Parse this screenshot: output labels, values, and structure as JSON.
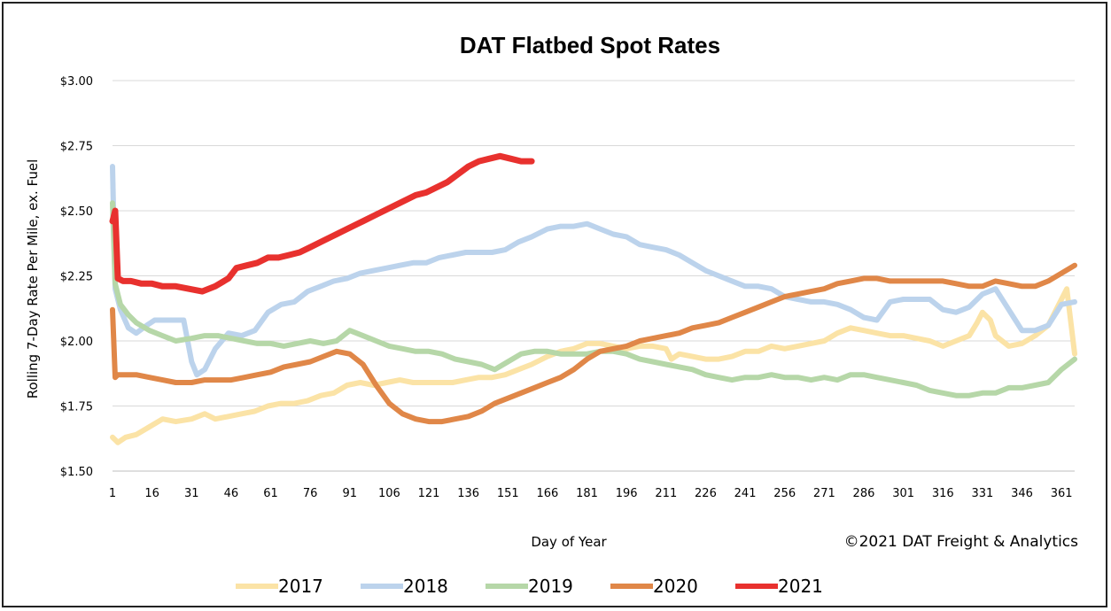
{
  "chart_data": {
    "type": "line",
    "title": "DAT Flatbed Spot Rates",
    "xlabel": "Day of Year",
    "ylabel": "Rolling 7-Day Rate Per Mile, ex. Fuel",
    "credit": "©2021 DAT Freight & Analytics",
    "xlim": [
      1,
      366
    ],
    "ylim": [
      1.5,
      3.0
    ],
    "x_ticks": [
      "1",
      "16",
      "31",
      "46",
      "61",
      "76",
      "91",
      "106",
      "121",
      "136",
      "151",
      "166",
      "181",
      "196",
      "211",
      "226",
      "241",
      "256",
      "271",
      "286",
      "301",
      "316",
      "331",
      "346",
      "361"
    ],
    "y_ticks": [
      "$1.50",
      "$1.75",
      "$2.00",
      "$2.25",
      "$2.50",
      "$2.75",
      "$3.00"
    ],
    "grid": true,
    "legend_position": "bottom",
    "series": [
      {
        "name": "2017",
        "color": "#fbe3a6",
        "x": [
          1,
          3,
          6,
          10,
          15,
          20,
          25,
          31,
          36,
          40,
          45,
          50,
          55,
          60,
          65,
          70,
          75,
          80,
          85,
          90,
          95,
          100,
          105,
          110,
          115,
          120,
          125,
          130,
          135,
          140,
          145,
          150,
          155,
          160,
          166,
          171,
          176,
          181,
          186,
          191,
          196,
          201,
          206,
          211,
          213,
          216,
          221,
          226,
          231,
          236,
          241,
          246,
          251,
          256,
          261,
          266,
          271,
          276,
          281,
          286,
          291,
          296,
          301,
          306,
          311,
          316,
          321,
          326,
          329,
          331,
          334,
          336,
          341,
          346,
          351,
          356,
          361,
          363,
          366
        ],
        "y": [
          1.63,
          1.61,
          1.63,
          1.64,
          1.67,
          1.7,
          1.69,
          1.7,
          1.72,
          1.7,
          1.71,
          1.72,
          1.73,
          1.75,
          1.76,
          1.76,
          1.77,
          1.79,
          1.8,
          1.83,
          1.84,
          1.83,
          1.84,
          1.85,
          1.84,
          1.84,
          1.84,
          1.84,
          1.85,
          1.86,
          1.86,
          1.87,
          1.89,
          1.91,
          1.94,
          1.96,
          1.97,
          1.99,
          1.99,
          1.98,
          1.97,
          1.98,
          1.98,
          1.97,
          1.93,
          1.95,
          1.94,
          1.93,
          1.93,
          1.94,
          1.96,
          1.96,
          1.98,
          1.97,
          1.98,
          1.99,
          2.0,
          2.03,
          2.05,
          2.04,
          2.03,
          2.02,
          2.02,
          2.01,
          2.0,
          1.98,
          2.0,
          2.02,
          2.07,
          2.11,
          2.08,
          2.02,
          1.98,
          1.99,
          2.02,
          2.06,
          2.16,
          2.2,
          1.95
        ]
      },
      {
        "name": "2018",
        "color": "#bcd3ec",
        "x": [
          1,
          2,
          4,
          7,
          10,
          14,
          17,
          21,
          25,
          28,
          31,
          33,
          36,
          40,
          45,
          50,
          55,
          60,
          65,
          70,
          75,
          80,
          85,
          90,
          95,
          100,
          105,
          110,
          115,
          120,
          125,
          130,
          135,
          140,
          145,
          150,
          155,
          160,
          166,
          171,
          176,
          181,
          186,
          191,
          196,
          201,
          206,
          211,
          216,
          221,
          226,
          231,
          236,
          241,
          246,
          251,
          256,
          261,
          266,
          271,
          276,
          281,
          286,
          291,
          296,
          301,
          306,
          311,
          316,
          321,
          326,
          331,
          336,
          341,
          346,
          351,
          356,
          361,
          366
        ],
        "y": [
          2.67,
          2.2,
          2.12,
          2.05,
          2.03,
          2.06,
          2.08,
          2.08,
          2.08,
          2.08,
          1.92,
          1.87,
          1.89,
          1.97,
          2.03,
          2.02,
          2.04,
          2.11,
          2.14,
          2.15,
          2.19,
          2.21,
          2.23,
          2.24,
          2.26,
          2.27,
          2.28,
          2.29,
          2.3,
          2.3,
          2.32,
          2.33,
          2.34,
          2.34,
          2.34,
          2.35,
          2.38,
          2.4,
          2.43,
          2.44,
          2.44,
          2.45,
          2.43,
          2.41,
          2.4,
          2.37,
          2.36,
          2.35,
          2.33,
          2.3,
          2.27,
          2.25,
          2.23,
          2.21,
          2.21,
          2.2,
          2.17,
          2.16,
          2.15,
          2.15,
          2.14,
          2.12,
          2.09,
          2.08,
          2.15,
          2.16,
          2.16,
          2.16,
          2.12,
          2.11,
          2.13,
          2.18,
          2.2,
          2.12,
          2.04,
          2.04,
          2.06,
          2.14,
          2.15
        ]
      },
      {
        "name": "2019",
        "color": "#b6d7a8",
        "x": [
          1,
          2,
          4,
          7,
          10,
          15,
          20,
          25,
          31,
          36,
          41,
          46,
          51,
          56,
          61,
          66,
          71,
          76,
          81,
          86,
          91,
          96,
          101,
          106,
          111,
          116,
          121,
          126,
          131,
          136,
          141,
          146,
          151,
          156,
          161,
          166,
          171,
          176,
          181,
          186,
          191,
          196,
          201,
          206,
          211,
          216,
          221,
          226,
          231,
          236,
          241,
          246,
          251,
          256,
          261,
          266,
          271,
          276,
          281,
          286,
          291,
          296,
          301,
          306,
          311,
          316,
          321,
          326,
          331,
          336,
          341,
          346,
          351,
          356,
          361,
          366
        ],
        "y": [
          2.53,
          2.22,
          2.14,
          2.1,
          2.07,
          2.04,
          2.02,
          2.0,
          2.01,
          2.02,
          2.02,
          2.01,
          2.0,
          1.99,
          1.99,
          1.98,
          1.99,
          2.0,
          1.99,
          2.0,
          2.04,
          2.02,
          2.0,
          1.98,
          1.97,
          1.96,
          1.96,
          1.95,
          1.93,
          1.92,
          1.91,
          1.89,
          1.92,
          1.95,
          1.96,
          1.96,
          1.95,
          1.95,
          1.95,
          1.96,
          1.96,
          1.95,
          1.93,
          1.92,
          1.91,
          1.9,
          1.89,
          1.87,
          1.86,
          1.85,
          1.86,
          1.86,
          1.87,
          1.86,
          1.86,
          1.85,
          1.86,
          1.85,
          1.87,
          1.87,
          1.86,
          1.85,
          1.84,
          1.83,
          1.81,
          1.8,
          1.79,
          1.79,
          1.8,
          1.8,
          1.82,
          1.82,
          1.83,
          1.84,
          1.89,
          1.93
        ]
      },
      {
        "name": "2020",
        "color": "#e08748",
        "x": [
          1,
          2,
          3,
          6,
          10,
          15,
          20,
          25,
          31,
          36,
          41,
          46,
          51,
          56,
          61,
          66,
          71,
          76,
          81,
          86,
          91,
          96,
          101,
          106,
          111,
          116,
          121,
          126,
          131,
          136,
          141,
          146,
          151,
          156,
          161,
          166,
          171,
          176,
          181,
          186,
          191,
          196,
          201,
          206,
          211,
          216,
          221,
          226,
          231,
          236,
          241,
          246,
          251,
          256,
          261,
          266,
          271,
          276,
          281,
          286,
          291,
          296,
          301,
          306,
          311,
          316,
          321,
          326,
          331,
          336,
          341,
          346,
          351,
          356,
          361,
          366
        ],
        "y": [
          2.12,
          1.86,
          1.87,
          1.87,
          1.87,
          1.86,
          1.85,
          1.84,
          1.84,
          1.85,
          1.85,
          1.85,
          1.86,
          1.87,
          1.88,
          1.9,
          1.91,
          1.92,
          1.94,
          1.96,
          1.95,
          1.91,
          1.83,
          1.76,
          1.72,
          1.7,
          1.69,
          1.69,
          1.7,
          1.71,
          1.73,
          1.76,
          1.78,
          1.8,
          1.82,
          1.84,
          1.86,
          1.89,
          1.93,
          1.96,
          1.97,
          1.98,
          2.0,
          2.01,
          2.02,
          2.03,
          2.05,
          2.06,
          2.07,
          2.09,
          2.11,
          2.13,
          2.15,
          2.17,
          2.18,
          2.19,
          2.2,
          2.22,
          2.23,
          2.24,
          2.24,
          2.23,
          2.23,
          2.23,
          2.23,
          2.23,
          2.22,
          2.21,
          2.21,
          2.23,
          2.22,
          2.21,
          2.21,
          2.23,
          2.26,
          2.29
        ]
      },
      {
        "name": "2021",
        "color": "#e8312e",
        "x": [
          1,
          2,
          3,
          5,
          8,
          12,
          16,
          20,
          25,
          30,
          35,
          40,
          45,
          48,
          52,
          56,
          60,
          64,
          68,
          72,
          76,
          80,
          84,
          88,
          92,
          96,
          100,
          104,
          108,
          112,
          116,
          120,
          124,
          128,
          132,
          136,
          140,
          144,
          148,
          152,
          156,
          160
        ],
        "y": [
          2.46,
          2.5,
          2.24,
          2.23,
          2.23,
          2.22,
          2.22,
          2.21,
          2.21,
          2.2,
          2.19,
          2.21,
          2.24,
          2.28,
          2.29,
          2.3,
          2.32,
          2.32,
          2.33,
          2.34,
          2.36,
          2.38,
          2.4,
          2.42,
          2.44,
          2.46,
          2.48,
          2.5,
          2.52,
          2.54,
          2.56,
          2.57,
          2.59,
          2.61,
          2.64,
          2.67,
          2.69,
          2.7,
          2.71,
          2.7,
          2.69,
          2.69
        ]
      }
    ]
  }
}
